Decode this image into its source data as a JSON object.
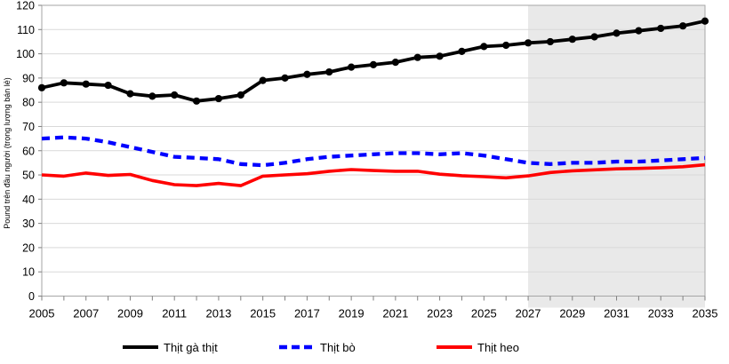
{
  "chart_data": {
    "type": "line",
    "title": "",
    "xlabel": "",
    "ylabel": "Pound trên đầu người (trọng lượng bán lẻ)",
    "ylim": [
      0,
      120
    ],
    "ytick_step": 10,
    "ytick_labels": [
      "0",
      "10",
      "20",
      "30",
      "40",
      "50",
      "60",
      "70",
      "80",
      "90",
      "100",
      "110",
      "120"
    ],
    "x": [
      2005,
      2006,
      2007,
      2008,
      2009,
      2010,
      2011,
      2012,
      2013,
      2014,
      2015,
      2016,
      2017,
      2018,
      2019,
      2020,
      2021,
      2022,
      2023,
      2024,
      2025,
      2026,
      2027,
      2028,
      2029,
      2030,
      2031,
      2032,
      2033,
      2034,
      2035
    ],
    "xtick_labels": [
      "2005",
      "2007",
      "2009",
      "2011",
      "2013",
      "2015",
      "2017",
      "2019",
      "2021",
      "2023",
      "2025",
      "2027",
      "2029",
      "2031",
      "2033",
      "2035"
    ],
    "grid": true,
    "legend_position": "bottom",
    "forecast_shading_start_year": 2027,
    "colors": {
      "shading": "#e9e9e9",
      "gridline": "#d9d9d9",
      "plot_border": "#a6a6a6",
      "axis": "#7f7f7f",
      "text": "#000000"
    },
    "series": [
      {
        "name": "Thịt gà thịt",
        "color": "#000000",
        "style": "solid",
        "markers": true,
        "values": [
          86,
          88,
          87.5,
          87,
          83.5,
          82.5,
          83,
          80.5,
          81.5,
          83,
          89,
          90,
          91.5,
          92.5,
          94.5,
          95.5,
          96.5,
          98.5,
          99,
          101,
          103,
          103.5,
          104.5,
          105,
          106,
          107,
          108.5,
          109.5,
          110.5,
          111.5,
          113.5
        ]
      },
      {
        "name": "Thịt bò",
        "color": "#0000ff",
        "style": "dashed",
        "markers": false,
        "values": [
          65,
          65.5,
          65,
          63.5,
          61.5,
          59.5,
          57.5,
          57,
          56.5,
          54.5,
          54,
          55,
          56.5,
          57.5,
          58,
          58.5,
          59,
          59,
          58.5,
          59,
          58,
          56.5,
          55,
          54.5,
          55,
          55,
          55.5,
          55.5,
          56,
          56.5,
          57
        ]
      },
      {
        "name": "Thịt heo",
        "color": "#ff0000",
        "style": "solid",
        "markers": false,
        "values": [
          50,
          49.5,
          50.8,
          49.8,
          50.2,
          47.7,
          46,
          45.6,
          46.5,
          45.6,
          49.5,
          50,
          50.5,
          51.5,
          52.2,
          51.8,
          51.5,
          51.5,
          50.3,
          49.7,
          49.3,
          48.8,
          49.6,
          51,
          51.7,
          52.1,
          52.5,
          52.7,
          53,
          53.4,
          54.2
        ]
      }
    ]
  }
}
